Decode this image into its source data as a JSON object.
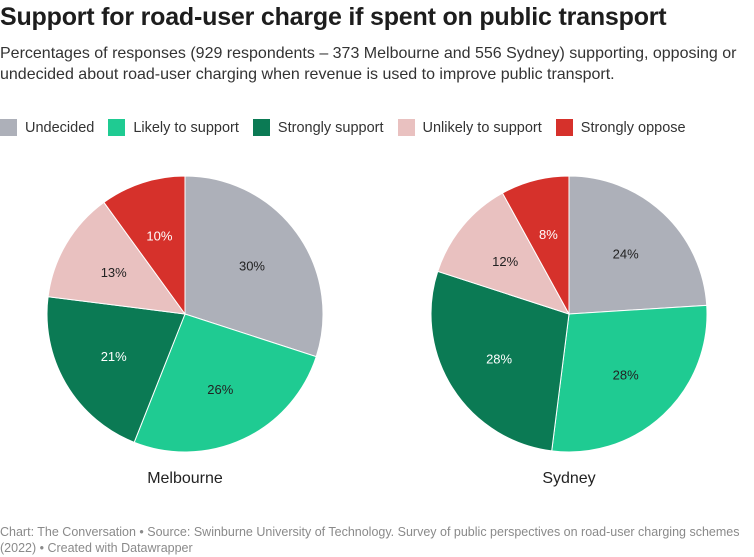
{
  "title": "Support for road-user charge if spent on public transport",
  "subtitle": "Percentages of responses (929 respondents – 373 Melbourne and 556 Sydney) supporting, opposing or undecided about road-user charging when revenue is used to improve public transport.",
  "footer": "Chart: The Conversation • Source: Swinburne University of Technology. Survey of public perspectives on road-user charging schemes (2022) • Created with Datawrapper",
  "chart_data": {
    "type": "pie",
    "legend_placement": "top",
    "categories": [
      "Undecided",
      "Likely to support",
      "Strongly support",
      "Unlikely to support",
      "Strongly oppose"
    ],
    "colors": [
      "#adb0b9",
      "#1fcb92",
      "#0b7a54",
      "#e9c1c0",
      "#d6312b"
    ],
    "series": [
      {
        "name": "Melbourne",
        "values": [
          30,
          26,
          21,
          13,
          10
        ]
      },
      {
        "name": "Sydney",
        "values": [
          24,
          28,
          28,
          12,
          8
        ]
      }
    ]
  }
}
